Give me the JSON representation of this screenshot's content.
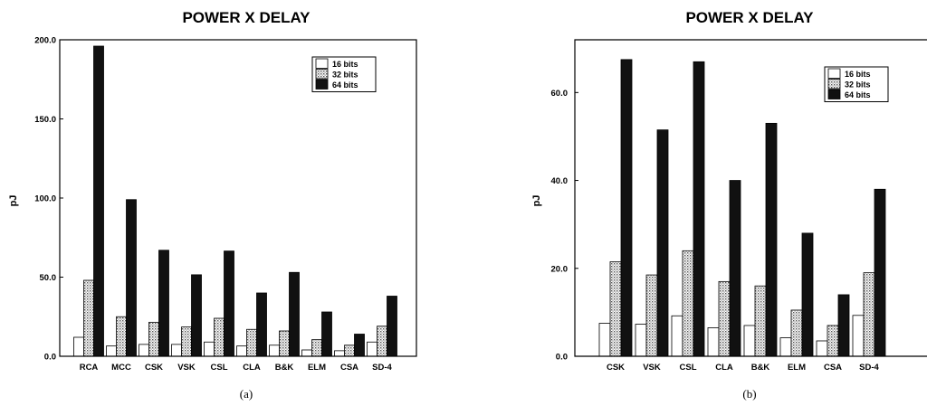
{
  "chart_data": [
    {
      "type": "bar",
      "title": "POWER X DELAY",
      "ylabel": "pJ",
      "xlabel": "",
      "caption": "(a)",
      "ylim": [
        0,
        200
      ],
      "yticks": [
        "0.0",
        "50.0",
        "100.0",
        "150.0",
        "200.0"
      ],
      "legend_position": "top-right",
      "categories": [
        "RCA",
        "MCC",
        "CSK",
        "VSK",
        "CSL",
        "CLA",
        "B&K",
        "ELM",
        "CSA",
        "SD-4"
      ],
      "series": [
        {
          "name": "16 bits",
          "fill": "white",
          "values": [
            12,
            6.5,
            7.5,
            7.5,
            9,
            6.5,
            7,
            4,
            3.5,
            9
          ]
        },
        {
          "name": "32 bits",
          "fill": "dotted",
          "values": [
            48,
            25,
            21.5,
            18.5,
            24,
            17,
            16,
            10.5,
            7,
            19
          ]
        },
        {
          "name": "64 bits",
          "fill": "black",
          "values": [
            196,
            99,
            67,
            51.5,
            66.5,
            40,
            53,
            28,
            14,
            38
          ]
        }
      ]
    },
    {
      "type": "bar",
      "title": "POWER X DELAY",
      "ylabel": "pJ",
      "xlabel": "",
      "caption": "(b)",
      "ylim": [
        0,
        72
      ],
      "yticks": [
        "0.0",
        "20.0",
        "40.0",
        "60.0"
      ],
      "legend_position": "top-right",
      "categories": [
        "CSK",
        "VSK",
        "CSL",
        "CLA",
        "B&K",
        "ELM",
        "CSA",
        "SD-4"
      ],
      "series": [
        {
          "name": "16 bits",
          "fill": "white",
          "values": [
            7.5,
            7.3,
            9.2,
            6.5,
            7,
            4.2,
            3.5,
            9.3
          ]
        },
        {
          "name": "32 bits",
          "fill": "dotted",
          "values": [
            21.5,
            18.5,
            24,
            17,
            16,
            10.5,
            7,
            19
          ]
        },
        {
          "name": "64 bits",
          "fill": "black",
          "values": [
            67.5,
            51.5,
            67,
            40,
            53,
            28,
            14,
            38
          ]
        }
      ]
    }
  ]
}
